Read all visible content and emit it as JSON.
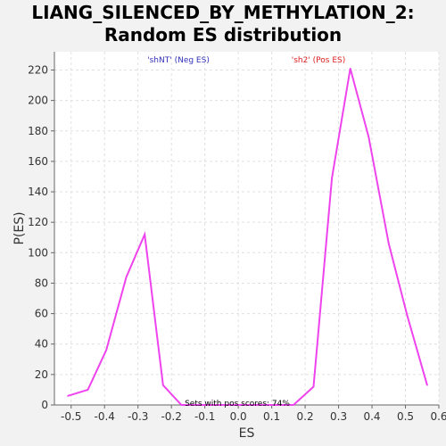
{
  "title_line1": "LIANG_SILENCED_BY_METHYLATION_2:",
  "title_line2": "Random ES distribution",
  "chart_data": {
    "type": "line",
    "title": "LIANG_SILENCED_BY_METHYLATION_2: Random ES distribution",
    "xlabel": "ES",
    "ylabel": "P(ES)",
    "xlim": [
      -0.55,
      0.6
    ],
    "ylim": [
      0,
      232
    ],
    "xticks": [
      "-0.5",
      "-0.4",
      "-0.3",
      "-0.2",
      "-0.1",
      "0.0",
      "0.1",
      "0.2",
      "0.3",
      "0.4",
      "0.5",
      "0.6"
    ],
    "yticks": [
      "0",
      "20",
      "40",
      "60",
      "80",
      "100",
      "120",
      "140",
      "160",
      "180",
      "200",
      "220"
    ],
    "grid": true,
    "series": [
      {
        "color": "#ee44ee",
        "x": [
          -0.51,
          -0.45,
          -0.395,
          -0.335,
          -0.28,
          -0.225,
          -0.17,
          -0.11,
          0.1,
          0.165,
          0.225,
          0.28,
          0.335,
          0.39,
          0.45,
          0.505,
          0.565
        ],
        "y": [
          6,
          10,
          36,
          84,
          112,
          13,
          0,
          0,
          0,
          0,
          12,
          149,
          221,
          176,
          106,
          59,
          13
        ]
      }
    ],
    "annotations": {
      "neg": "'shNT' (Neg ES)",
      "pos": "'sh2' (Pos ES)",
      "footer": "Sets with pos scores: 74%"
    },
    "colors": {
      "neg": "#3333bb",
      "pos": "#dd2222",
      "line": "#ee44ee",
      "plot_bg": "#ffffff",
      "page_bg": "#f2f2f2"
    }
  }
}
